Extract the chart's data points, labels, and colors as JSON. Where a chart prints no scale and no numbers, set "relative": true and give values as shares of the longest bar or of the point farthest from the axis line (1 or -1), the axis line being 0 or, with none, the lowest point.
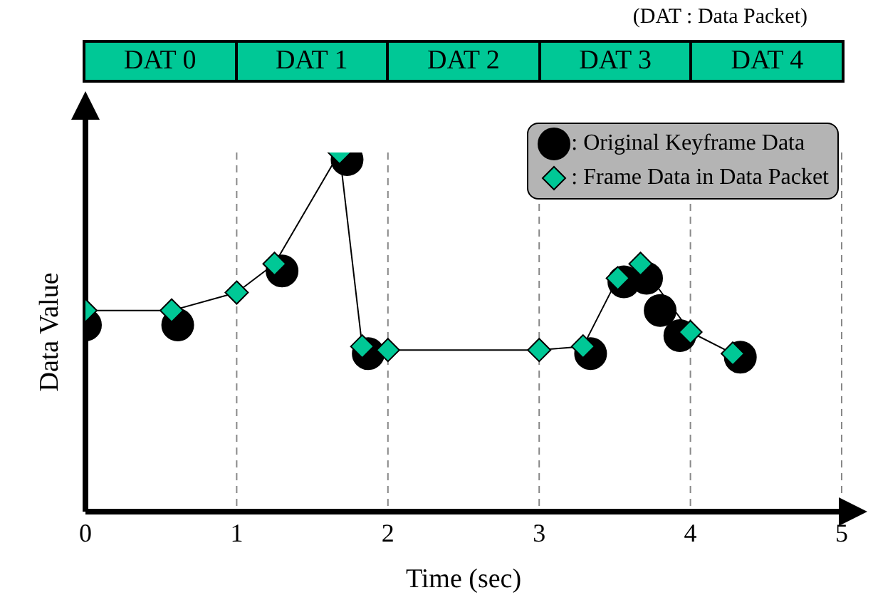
{
  "chart_data": {
    "type": "line",
    "relative": true,
    "xlabel": "Time  (sec)",
    "ylabel": "Data Value",
    "xlim": [
      0,
      5
    ],
    "xticks": [
      0,
      1,
      2,
      3,
      4,
      5
    ],
    "grid": "x",
    "legend": "top right",
    "annotations": [
      "(DAT : Data Packet)",
      "DAT 0",
      "DAT 1",
      "DAT 2",
      "DAT 3",
      "DAT 4"
    ],
    "series": [
      {
        "name": ": Original Keyframe Data",
        "type": "scatter",
        "marker": "circle",
        "color": "#000000",
        "x": [
          0,
          0.61,
          1.3,
          1.73,
          1.87,
          3.34,
          3.56,
          3.71,
          3.8,
          3.93,
          4.33
        ],
        "values": [
          0.52,
          0.52,
          0.67,
          0.98,
          0.44,
          0.44,
          0.64,
          0.65,
          0.56,
          0.49,
          0.43
        ]
      },
      {
        "name": ": Frame Data in Data Packet",
        "marker": "diamond",
        "color": "#00c896",
        "x": [
          0,
          0.57,
          1,
          1.25,
          1.68,
          1.83,
          2,
          3,
          3.29,
          3.52,
          3.67,
          4,
          4.28
        ],
        "values": [
          0.56,
          0.56,
          0.61,
          0.69,
          1,
          0.46,
          0.45,
          0.45,
          0.46,
          0.65,
          0.69,
          0.5,
          0.44
        ]
      }
    ]
  }
}
